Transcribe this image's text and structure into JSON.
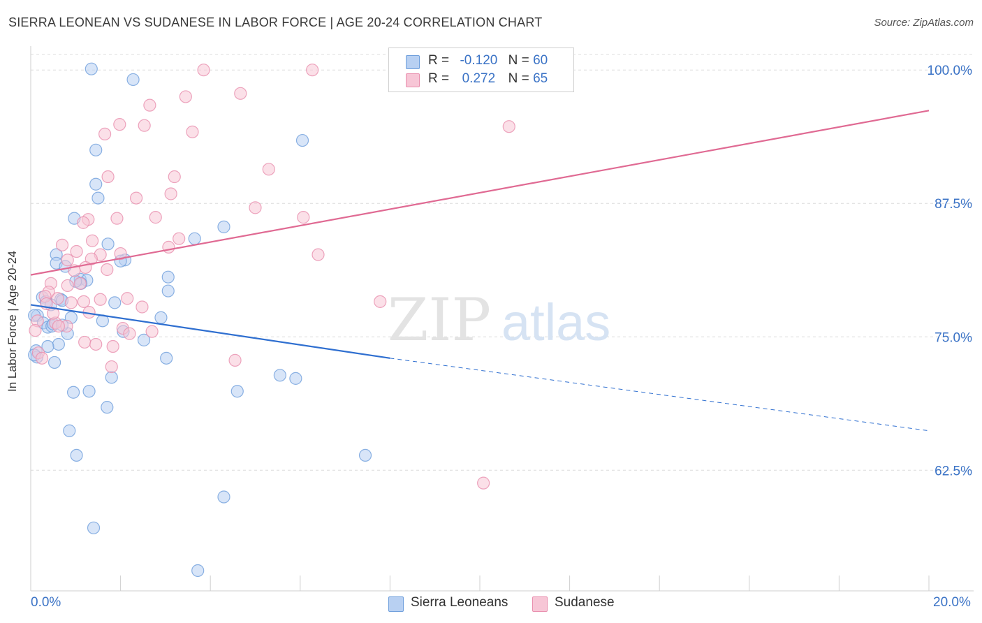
{
  "header": {
    "title": "SIERRA LEONEAN VS SUDANESE IN LABOR FORCE | AGE 20-24 CORRELATION CHART",
    "source": "Source: ZipAtlas.com"
  },
  "watermark": {
    "zip": "ZIP",
    "atlas": "atlas"
  },
  "colors": {
    "blue_fill": "#b8d0f2",
    "blue_stroke": "#6f9fdc",
    "blue_line": "#2f6fd0",
    "pink_fill": "#f7c6d6",
    "pink_stroke": "#e98fae",
    "pink_line": "#e06a93",
    "tick_label": "#3b73c6",
    "grid": "#dcdcdc"
  },
  "legend": {
    "rows": [
      {
        "r_label": "R =",
        "r_value": "-0.120",
        "n_label": "N =",
        "n_value": "60"
      },
      {
        "r_label": "R =",
        "r_value": "0.272",
        "n_label": "N =",
        "n_value": "65"
      }
    ]
  },
  "bottom_legend": {
    "series1": "Sierra Leoneans",
    "series2": "Sudanese"
  },
  "x_axis": {
    "min_label": "0.0%",
    "max_label": "20.0%"
  },
  "chart_data": {
    "type": "scatter",
    "title": "SIERRA LEONEAN VS SUDANESE IN LABOR FORCE | AGE 20-24 CORRELATION CHART",
    "xlabel": "",
    "ylabel": "In Labor Force | Age 20-24",
    "xlim": [
      0,
      20
    ],
    "ylim": [
      51.2,
      102.5
    ],
    "y_ticks": [
      62.5,
      75.0,
      87.5,
      100.0
    ],
    "y_tick_labels": [
      "62.5%",
      "75.0%",
      "87.5%",
      "100.0%"
    ],
    "x_tick_labels": [
      "0.0%",
      "20.0%"
    ],
    "grid": true,
    "legend_position": "top-center",
    "series": [
      {
        "name": "Sierra Leoneans",
        "r": -0.12,
        "n": 60,
        "trend": {
          "x0": 0.0,
          "y0": 78.0,
          "x1": 8.0,
          "y1": 73.0,
          "dashed_to_x": 20.0,
          "dashed_to_y": 66.2
        },
        "points": [
          [
            1.35,
            100.1
          ],
          [
            2.28,
            99.1
          ],
          [
            6.05,
            93.4
          ],
          [
            1.45,
            92.5
          ],
          [
            1.45,
            89.3
          ],
          [
            1.5,
            88.0
          ],
          [
            0.97,
            86.1
          ],
          [
            1.72,
            83.7
          ],
          [
            3.65,
            84.2
          ],
          [
            4.3,
            85.3
          ],
          [
            0.57,
            82.7
          ],
          [
            0.57,
            81.9
          ],
          [
            0.77,
            81.6
          ],
          [
            2.1,
            82.2
          ],
          [
            2.0,
            82.1
          ],
          [
            1.1,
            80.4
          ],
          [
            1.25,
            80.3
          ],
          [
            1.12,
            80.0
          ],
          [
            3.06,
            80.6
          ],
          [
            3.06,
            79.3
          ],
          [
            0.26,
            78.7
          ],
          [
            0.67,
            78.5
          ],
          [
            0.7,
            78.4
          ],
          [
            1.87,
            78.2
          ],
          [
            0.34,
            78.3
          ],
          [
            0.15,
            77.0
          ],
          [
            0.28,
            76.3
          ],
          [
            0.38,
            75.9
          ],
          [
            0.47,
            76.0
          ],
          [
            0.5,
            76.2
          ],
          [
            0.9,
            76.8
          ],
          [
            1.6,
            76.5
          ],
          [
            2.9,
            76.8
          ],
          [
            2.06,
            75.5
          ],
          [
            0.82,
            75.3
          ],
          [
            0.62,
            74.3
          ],
          [
            0.38,
            74.1
          ],
          [
            2.52,
            74.7
          ],
          [
            0.12,
            73.7
          ],
          [
            0.14,
            73.1
          ],
          [
            0.08,
            73.3
          ],
          [
            0.53,
            72.6
          ],
          [
            3.02,
            73.0
          ],
          [
            1.8,
            71.2
          ],
          [
            5.55,
            71.4
          ],
          [
            5.9,
            71.1
          ],
          [
            0.95,
            69.8
          ],
          [
            1.3,
            69.9
          ],
          [
            4.6,
            69.9
          ],
          [
            1.7,
            68.4
          ],
          [
            0.86,
            66.2
          ],
          [
            1.02,
            63.9
          ],
          [
            7.45,
            63.9
          ],
          [
            4.3,
            60.0
          ],
          [
            1.4,
            57.1
          ],
          [
            3.72,
            53.1
          ],
          [
            0.08,
            77.0
          ],
          [
            0.45,
            78.0
          ],
          [
            0.7,
            76.1
          ],
          [
            1.0,
            80.2
          ]
        ]
      },
      {
        "name": "Sudanese",
        "r": 0.272,
        "n": 65,
        "trend": {
          "x0": 0.0,
          "y0": 80.8,
          "x1": 20.0,
          "y1": 96.2
        },
        "points": [
          [
            3.85,
            100.0
          ],
          [
            6.27,
            100.0
          ],
          [
            4.67,
            97.8
          ],
          [
            3.45,
            97.5
          ],
          [
            2.65,
            96.7
          ],
          [
            1.98,
            94.9
          ],
          [
            2.53,
            94.8
          ],
          [
            1.65,
            94.0
          ],
          [
            3.6,
            94.2
          ],
          [
            5.3,
            90.7
          ],
          [
            3.2,
            90.0
          ],
          [
            1.72,
            90.0
          ],
          [
            3.12,
            88.4
          ],
          [
            2.35,
            88.0
          ],
          [
            5.0,
            87.1
          ],
          [
            1.92,
            86.1
          ],
          [
            2.78,
            86.2
          ],
          [
            6.07,
            86.2
          ],
          [
            1.28,
            86.0
          ],
          [
            1.17,
            85.7
          ],
          [
            3.3,
            84.2
          ],
          [
            1.37,
            84.0
          ],
          [
            0.7,
            83.6
          ],
          [
            3.07,
            83.4
          ],
          [
            1.02,
            83.0
          ],
          [
            2.0,
            82.8
          ],
          [
            6.4,
            82.7
          ],
          [
            1.55,
            82.7
          ],
          [
            1.35,
            82.3
          ],
          [
            0.82,
            82.2
          ],
          [
            1.22,
            81.5
          ],
          [
            0.97,
            81.2
          ],
          [
            1.7,
            81.3
          ],
          [
            0.45,
            80.0
          ],
          [
            0.82,
            79.8
          ],
          [
            1.1,
            80.0
          ],
          [
            0.4,
            79.2
          ],
          [
            0.32,
            78.8
          ],
          [
            0.6,
            78.6
          ],
          [
            1.55,
            78.5
          ],
          [
            2.15,
            78.6
          ],
          [
            0.9,
            78.2
          ],
          [
            1.18,
            78.3
          ],
          [
            7.78,
            78.3
          ],
          [
            2.48,
            77.8
          ],
          [
            1.3,
            77.3
          ],
          [
            0.55,
            76.3
          ],
          [
            0.8,
            76.0
          ],
          [
            0.15,
            76.5
          ],
          [
            2.05,
            75.8
          ],
          [
            2.2,
            75.3
          ],
          [
            0.1,
            75.6
          ],
          [
            2.7,
            75.5
          ],
          [
            1.2,
            74.5
          ],
          [
            1.45,
            74.3
          ],
          [
            1.83,
            74.1
          ],
          [
            0.17,
            73.5
          ],
          [
            0.25,
            73.0
          ],
          [
            1.8,
            72.2
          ],
          [
            4.55,
            72.8
          ],
          [
            10.65,
            94.7
          ],
          [
            10.08,
            61.3
          ],
          [
            0.62,
            76.0
          ],
          [
            0.35,
            78.1
          ],
          [
            0.5,
            77.2
          ]
        ]
      }
    ]
  }
}
